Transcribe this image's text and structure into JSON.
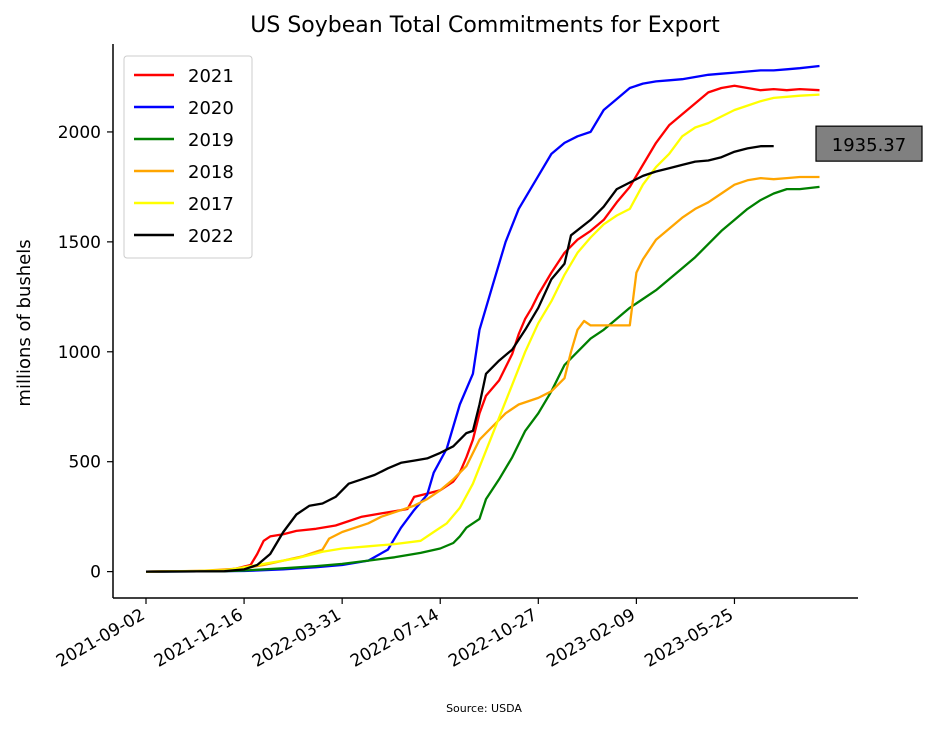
{
  "chart_data": {
    "type": "line",
    "title": "US Soybean Total Commitments for Export",
    "xlabel": "",
    "ylabel": "millions of bushels",
    "source": "Source: USDA",
    "x_tick_labels": [
      "2021-09-02",
      "2021-12-16",
      "2022-03-31",
      "2022-07-14",
      "2022-10-27",
      "2023-02-09",
      "2023-05-25"
    ],
    "x_range": [
      "2021-09-02",
      "2023-08-31"
    ],
    "y_ticks": [
      0,
      500,
      1000,
      1500,
      2000
    ],
    "ylim": [
      -120,
      2400
    ],
    "grid": false,
    "legend_position": "top-left",
    "annotation": {
      "label": "1935.37",
      "value": 1935.37
    },
    "series": [
      {
        "name": "2021",
        "color": "#ff0000",
        "points": [
          [
            "2021-09-02",
            0
          ],
          [
            "2021-10-14",
            2
          ],
          [
            "2021-11-25",
            5
          ],
          [
            "2021-12-09",
            15
          ],
          [
            "2021-12-23",
            30
          ],
          [
            "2021-12-30",
            80
          ],
          [
            "2022-01-06",
            140
          ],
          [
            "2022-01-13",
            160
          ],
          [
            "2022-01-27",
            170
          ],
          [
            "2022-02-10",
            185
          ],
          [
            "2022-03-03",
            195
          ],
          [
            "2022-03-24",
            210
          ],
          [
            "2022-04-07",
            230
          ],
          [
            "2022-04-21",
            250
          ],
          [
            "2022-05-12",
            265
          ],
          [
            "2022-05-26",
            275
          ],
          [
            "2022-06-09",
            285
          ],
          [
            "2022-06-16",
            340
          ],
          [
            "2022-06-30",
            355
          ],
          [
            "2022-07-14",
            370
          ],
          [
            "2022-07-28",
            410
          ],
          [
            "2022-08-04",
            450
          ],
          [
            "2022-08-11",
            520
          ],
          [
            "2022-08-18",
            600
          ],
          [
            "2022-08-25",
            720
          ],
          [
            "2022-09-01",
            800
          ],
          [
            "2022-09-15",
            870
          ],
          [
            "2022-09-22",
            930
          ],
          [
            "2022-09-29",
            990
          ],
          [
            "2022-10-06",
            1080
          ],
          [
            "2022-10-13",
            1150
          ],
          [
            "2022-10-20",
            1200
          ],
          [
            "2022-10-27",
            1260
          ],
          [
            "2022-11-10",
            1360
          ],
          [
            "2022-11-24",
            1450
          ],
          [
            "2022-12-08",
            1510
          ],
          [
            "2022-12-22",
            1550
          ],
          [
            "2023-01-05",
            1600
          ],
          [
            "2023-01-19",
            1680
          ],
          [
            "2023-02-02",
            1750
          ],
          [
            "2023-02-16",
            1850
          ],
          [
            "2023-03-02",
            1950
          ],
          [
            "2023-03-16",
            2030
          ],
          [
            "2023-03-30",
            2080
          ],
          [
            "2023-04-13",
            2130
          ],
          [
            "2023-04-27",
            2180
          ],
          [
            "2023-05-11",
            2200
          ],
          [
            "2023-05-25",
            2210
          ],
          [
            "2023-06-08",
            2200
          ],
          [
            "2023-06-22",
            2190
          ],
          [
            "2023-07-06",
            2195
          ],
          [
            "2023-07-20",
            2190
          ],
          [
            "2023-08-03",
            2195
          ],
          [
            "2023-08-24",
            2190
          ]
        ]
      },
      {
        "name": "2020",
        "color": "#0000ff",
        "points": [
          [
            "2021-09-02",
            0
          ],
          [
            "2021-10-28",
            1
          ],
          [
            "2021-12-16",
            3
          ],
          [
            "2022-01-27",
            10
          ],
          [
            "2022-03-03",
            20
          ],
          [
            "2022-03-31",
            30
          ],
          [
            "2022-04-28",
            50
          ],
          [
            "2022-05-19",
            100
          ],
          [
            "2022-06-02",
            200
          ],
          [
            "2022-06-16",
            280
          ],
          [
            "2022-06-30",
            350
          ],
          [
            "2022-07-07",
            450
          ],
          [
            "2022-07-21",
            560
          ],
          [
            "2022-08-04",
            760
          ],
          [
            "2022-08-18",
            900
          ],
          [
            "2022-08-25",
            1100
          ],
          [
            "2022-09-08",
            1300
          ],
          [
            "2022-09-22",
            1500
          ],
          [
            "2022-10-06",
            1650
          ],
          [
            "2022-10-27",
            1800
          ],
          [
            "2022-11-10",
            1900
          ],
          [
            "2022-11-24",
            1950
          ],
          [
            "2022-12-08",
            1980
          ],
          [
            "2022-12-22",
            2000
          ],
          [
            "2023-01-05",
            2100
          ],
          [
            "2023-01-19",
            2150
          ],
          [
            "2023-02-02",
            2200
          ],
          [
            "2023-02-16",
            2220
          ],
          [
            "2023-03-02",
            2230
          ],
          [
            "2023-03-16",
            2235
          ],
          [
            "2023-03-30",
            2240
          ],
          [
            "2023-04-13",
            2250
          ],
          [
            "2023-04-27",
            2260
          ],
          [
            "2023-05-11",
            2265
          ],
          [
            "2023-05-25",
            2270
          ],
          [
            "2023-06-08",
            2275
          ],
          [
            "2023-06-22",
            2280
          ],
          [
            "2023-07-06",
            2280
          ],
          [
            "2023-07-20",
            2285
          ],
          [
            "2023-08-03",
            2290
          ],
          [
            "2023-08-24",
            2300
          ]
        ]
      },
      {
        "name": "2019",
        "color": "#008000",
        "points": [
          [
            "2021-09-02",
            0
          ],
          [
            "2021-11-25",
            2
          ],
          [
            "2021-12-16",
            5
          ],
          [
            "2022-01-27",
            15
          ],
          [
            "2022-03-03",
            25
          ],
          [
            "2022-03-31",
            35
          ],
          [
            "2022-04-28",
            50
          ],
          [
            "2022-05-26",
            65
          ],
          [
            "2022-06-23",
            85
          ],
          [
            "2022-07-14",
            105
          ],
          [
            "2022-07-28",
            130
          ],
          [
            "2022-08-04",
            160
          ],
          [
            "2022-08-11",
            200
          ],
          [
            "2022-08-25",
            240
          ],
          [
            "2022-09-01",
            330
          ],
          [
            "2022-09-15",
            420
          ],
          [
            "2022-09-29",
            520
          ],
          [
            "2022-10-13",
            640
          ],
          [
            "2022-10-27",
            720
          ],
          [
            "2022-11-10",
            820
          ],
          [
            "2022-11-24",
            940
          ],
          [
            "2022-12-08",
            1000
          ],
          [
            "2022-12-22",
            1060
          ],
          [
            "2023-01-05",
            1100
          ],
          [
            "2023-01-19",
            1150
          ],
          [
            "2023-02-02",
            1200
          ],
          [
            "2023-02-16",
            1240
          ],
          [
            "2023-03-02",
            1280
          ],
          [
            "2023-03-16",
            1330
          ],
          [
            "2023-03-30",
            1380
          ],
          [
            "2023-04-13",
            1430
          ],
          [
            "2023-04-27",
            1490
          ],
          [
            "2023-05-11",
            1550
          ],
          [
            "2023-05-25",
            1600
          ],
          [
            "2023-06-08",
            1650
          ],
          [
            "2023-06-22",
            1690
          ],
          [
            "2023-07-06",
            1720
          ],
          [
            "2023-07-20",
            1740
          ],
          [
            "2023-08-03",
            1740
          ],
          [
            "2023-08-24",
            1750
          ]
        ]
      },
      {
        "name": "2018",
        "color": "#ffa500",
        "points": [
          [
            "2021-09-02",
            0
          ],
          [
            "2021-10-28",
            3
          ],
          [
            "2021-12-16",
            15
          ],
          [
            "2022-01-06",
            30
          ],
          [
            "2022-01-27",
            50
          ],
          [
            "2022-02-17",
            70
          ],
          [
            "2022-03-10",
            100
          ],
          [
            "2022-03-17",
            150
          ],
          [
            "2022-03-31",
            180
          ],
          [
            "2022-04-14",
            200
          ],
          [
            "2022-04-28",
            220
          ],
          [
            "2022-05-12",
            250
          ],
          [
            "2022-05-26",
            270
          ],
          [
            "2022-06-16",
            300
          ],
          [
            "2022-06-30",
            330
          ],
          [
            "2022-07-14",
            370
          ],
          [
            "2022-07-28",
            420
          ],
          [
            "2022-08-11",
            480
          ],
          [
            "2022-08-25",
            600
          ],
          [
            "2022-09-08",
            660
          ],
          [
            "2022-09-22",
            720
          ],
          [
            "2022-10-06",
            760
          ],
          [
            "2022-10-27",
            790
          ],
          [
            "2022-11-10",
            820
          ],
          [
            "2022-11-24",
            880
          ],
          [
            "2022-12-01",
            1000
          ],
          [
            "2022-12-08",
            1100
          ],
          [
            "2022-12-15",
            1140
          ],
          [
            "2022-12-22",
            1120
          ],
          [
            "2023-01-12",
            1120
          ],
          [
            "2023-02-02",
            1120
          ],
          [
            "2023-02-09",
            1360
          ],
          [
            "2023-02-16",
            1420
          ],
          [
            "2023-03-02",
            1510
          ],
          [
            "2023-03-16",
            1560
          ],
          [
            "2023-03-30",
            1610
          ],
          [
            "2023-04-13",
            1650
          ],
          [
            "2023-04-27",
            1680
          ],
          [
            "2023-05-11",
            1720
          ],
          [
            "2023-05-25",
            1760
          ],
          [
            "2023-06-08",
            1780
          ],
          [
            "2023-06-22",
            1790
          ],
          [
            "2023-07-06",
            1785
          ],
          [
            "2023-07-20",
            1790
          ],
          [
            "2023-08-03",
            1795
          ],
          [
            "2023-08-24",
            1795
          ]
        ]
      },
      {
        "name": "2017",
        "color": "#ffff00",
        "points": [
          [
            "2021-09-02",
            0
          ],
          [
            "2021-11-25",
            5
          ],
          [
            "2021-12-16",
            20
          ],
          [
            "2022-01-13",
            40
          ],
          [
            "2022-02-10",
            60
          ],
          [
            "2022-03-10",
            90
          ],
          [
            "2022-03-31",
            105
          ],
          [
            "2022-04-28",
            115
          ],
          [
            "2022-05-26",
            125
          ],
          [
            "2022-06-23",
            140
          ],
          [
            "2022-07-07",
            180
          ],
          [
            "2022-07-21",
            220
          ],
          [
            "2022-08-04",
            290
          ],
          [
            "2022-08-18",
            400
          ],
          [
            "2022-09-01",
            550
          ],
          [
            "2022-09-15",
            700
          ],
          [
            "2022-09-29",
            850
          ],
          [
            "2022-10-13",
            1000
          ],
          [
            "2022-10-27",
            1130
          ],
          [
            "2022-11-10",
            1230
          ],
          [
            "2022-11-24",
            1350
          ],
          [
            "2022-12-08",
            1450
          ],
          [
            "2022-12-22",
            1520
          ],
          [
            "2023-01-05",
            1580
          ],
          [
            "2023-01-19",
            1620
          ],
          [
            "2023-02-02",
            1650
          ],
          [
            "2023-02-16",
            1760
          ],
          [
            "2023-03-02",
            1840
          ],
          [
            "2023-03-16",
            1900
          ],
          [
            "2023-03-30",
            1980
          ],
          [
            "2023-04-13",
            2020
          ],
          [
            "2023-04-27",
            2040
          ],
          [
            "2023-05-11",
            2070
          ],
          [
            "2023-05-25",
            2100
          ],
          [
            "2023-06-08",
            2120
          ],
          [
            "2023-06-22",
            2140
          ],
          [
            "2023-07-06",
            2155
          ],
          [
            "2023-07-20",
            2160
          ],
          [
            "2023-08-03",
            2165
          ],
          [
            "2023-08-24",
            2170
          ]
        ]
      },
      {
        "name": "2022",
        "color": "#000000",
        "points": [
          [
            "2021-09-02",
            0
          ],
          [
            "2021-11-25",
            2
          ],
          [
            "2021-12-16",
            10
          ],
          [
            "2021-12-30",
            30
          ],
          [
            "2022-01-13",
            80
          ],
          [
            "2022-01-27",
            180
          ],
          [
            "2022-02-10",
            260
          ],
          [
            "2022-02-24",
            300
          ],
          [
            "2022-03-10",
            310
          ],
          [
            "2022-03-24",
            340
          ],
          [
            "2022-04-07",
            400
          ],
          [
            "2022-04-21",
            420
          ],
          [
            "2022-05-05",
            440
          ],
          [
            "2022-05-19",
            470
          ],
          [
            "2022-06-02",
            495
          ],
          [
            "2022-06-16",
            505
          ],
          [
            "2022-06-30",
            515
          ],
          [
            "2022-07-14",
            540
          ],
          [
            "2022-07-28",
            570
          ],
          [
            "2022-08-11",
            630
          ],
          [
            "2022-08-18",
            640
          ],
          [
            "2022-08-25",
            760
          ],
          [
            "2022-09-01",
            900
          ],
          [
            "2022-09-15",
            960
          ],
          [
            "2022-09-29",
            1010
          ],
          [
            "2022-10-13",
            1100
          ],
          [
            "2022-10-27",
            1200
          ],
          [
            "2022-11-10",
            1330
          ],
          [
            "2022-11-24",
            1400
          ],
          [
            "2022-12-01",
            1530
          ],
          [
            "2022-12-22",
            1600
          ],
          [
            "2023-01-05",
            1660
          ],
          [
            "2023-01-19",
            1740
          ],
          [
            "2023-02-02",
            1770
          ],
          [
            "2023-02-16",
            1800
          ],
          [
            "2023-03-02",
            1820
          ],
          [
            "2023-03-16",
            1835
          ],
          [
            "2023-03-30",
            1850
          ],
          [
            "2023-04-13",
            1865
          ],
          [
            "2023-04-27",
            1870
          ],
          [
            "2023-05-11",
            1885
          ],
          [
            "2023-05-25",
            1910
          ],
          [
            "2023-06-08",
            1925
          ],
          [
            "2023-06-22",
            1935
          ],
          [
            "2023-07-06",
            1935.37
          ]
        ]
      }
    ]
  }
}
